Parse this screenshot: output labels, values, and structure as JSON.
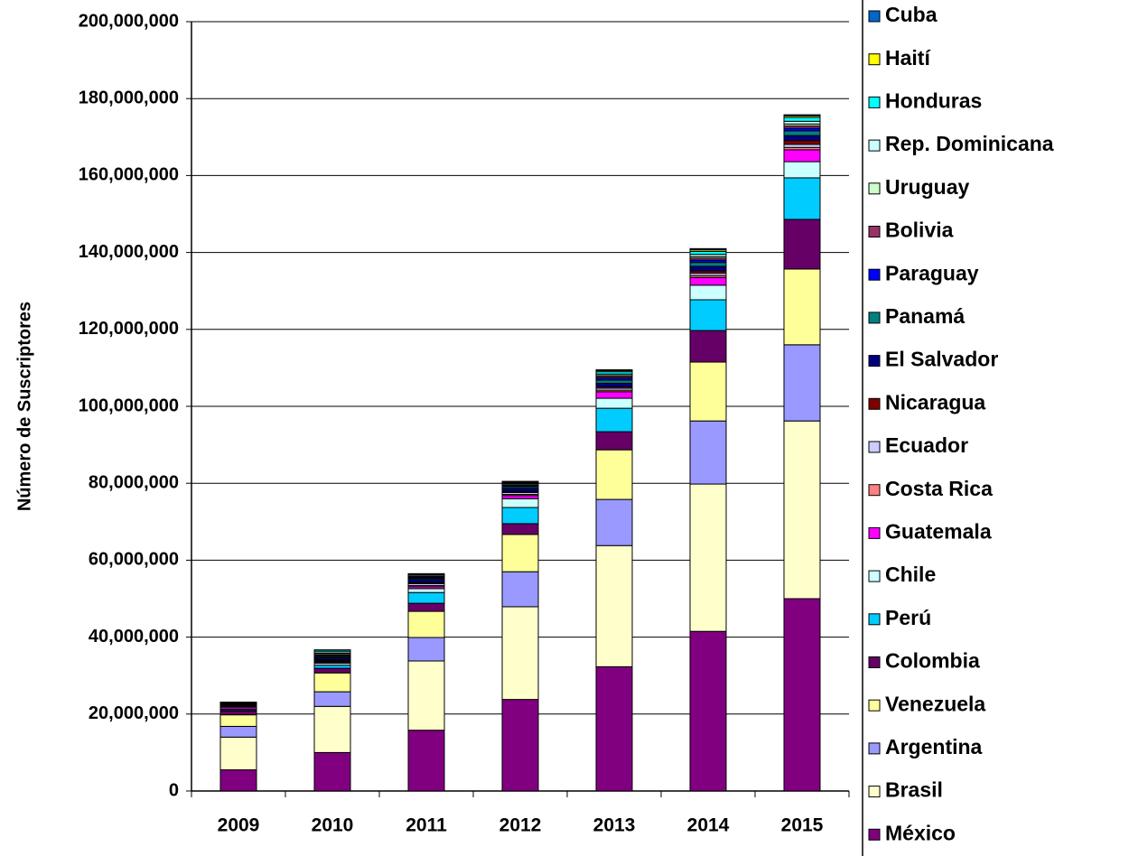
{
  "chart_data": {
    "type": "stacked_bar",
    "ylabel": "Número de Suscriptores",
    "categories": [
      "2009",
      "2010",
      "2011",
      "2012",
      "2013",
      "2014",
      "2015"
    ],
    "ylim": [
      0,
      200000000
    ],
    "yticks": [
      0,
      {
        "value": 20000000,
        "label": "20,000,000"
      },
      {
        "value": 40000000,
        "label": "40,000,000"
      },
      {
        "value": 60000000,
        "label": "60,000,000"
      },
      {
        "value": 80000000,
        "label": "80,000,000"
      },
      {
        "value": 100000000,
        "label": "100,000,000"
      },
      {
        "value": 120000000,
        "label": "120,000,000"
      },
      {
        "value": 140000000,
        "label": "140,000,000"
      },
      {
        "value": 160000000,
        "label": "160,000,000"
      },
      {
        "value": 180000000,
        "label": "180,000,000"
      },
      {
        "value": 200000000,
        "label": "200,000,000"
      }
    ],
    "grid": true,
    "legend": "right",
    "series": [
      {
        "name": "México",
        "color": "#800080",
        "values": [
          5500000,
          10000000,
          15800000,
          23800000,
          32300000,
          41500000,
          50000000
        ]
      },
      {
        "name": "Brasil",
        "color": "#ffffcc",
        "values": [
          8500000,
          12000000,
          18000000,
          24100000,
          31500000,
          38300000,
          46200000
        ]
      },
      {
        "name": "Argentina",
        "color": "#9999ff",
        "values": [
          2800000,
          3800000,
          6100000,
          9100000,
          12000000,
          16400000,
          19800000
        ]
      },
      {
        "name": "Venezuela",
        "color": "#ffff99",
        "values": [
          3000000,
          4900000,
          6800000,
          9700000,
          12900000,
          15300000,
          19700000
        ]
      },
      {
        "name": "Colombia",
        "color": "#660066",
        "values": [
          1000000,
          1200000,
          2100000,
          2800000,
          4700000,
          8200000,
          12900000
        ]
      },
      {
        "name": "Perú",
        "color": "#00ccff",
        "values": [
          300000,
          800000,
          2800000,
          4200000,
          6100000,
          8000000,
          10800000
        ]
      },
      {
        "name": "Chile",
        "color": "#ccffff",
        "values": [
          200000,
          500000,
          1000000,
          2300000,
          2600000,
          3800000,
          4200000
        ]
      },
      {
        "name": "Guatemala",
        "color": "#ff00ff",
        "values": [
          500000,
          300000,
          500000,
          800000,
          1700000,
          2000000,
          3100000
        ]
      },
      {
        "name": "Costa Rica",
        "color": "#ff8080",
        "values": [
          100000,
          200000,
          300000,
          300000,
          400000,
          500000,
          600000
        ]
      },
      {
        "name": "Ecuador",
        "color": "#ccccff",
        "values": [
          200000,
          200000,
          500000,
          500000,
          500000,
          600000,
          800000
        ]
      },
      {
        "name": "Nicaragua",
        "color": "#800000",
        "values": [
          100000,
          300000,
          300000,
          300000,
          400000,
          600000,
          1000000
        ]
      },
      {
        "name": "El Salvador",
        "color": "#000080",
        "values": [
          200000,
          500000,
          800000,
          800000,
          900000,
          1200000,
          1300000
        ]
      },
      {
        "name": "Panamá",
        "color": "#008080",
        "values": [
          100000,
          300000,
          300000,
          400000,
          800000,
          1000000,
          1200000
        ]
      },
      {
        "name": "Paraguay",
        "color": "#0000ff",
        "values": [
          100000,
          200000,
          300000,
          300000,
          500000,
          600000,
          700000
        ]
      },
      {
        "name": "Bolivia",
        "color": "#993366",
        "values": [
          100000,
          300000,
          200000,
          200000,
          400000,
          500000,
          600000
        ]
      },
      {
        "name": "Uruguay",
        "color": "#ccffcc",
        "values": [
          100000,
          300000,
          300000,
          300000,
          300000,
          400000,
          500000
        ]
      },
      {
        "name": "Rep. Dominicana",
        "color": "#ccffff",
        "values": [
          200000,
          400000,
          200000,
          200000,
          400000,
          600000,
          700000
        ]
      },
      {
        "name": "Honduras",
        "color": "#00ffff",
        "values": [
          100000,
          400000,
          100000,
          200000,
          600000,
          800000,
          1000000
        ]
      },
      {
        "name": "Haití",
        "color": "#ffff00",
        "values": [
          0,
          100000,
          100000,
          100000,
          300000,
          400000,
          400000
        ]
      },
      {
        "name": "Cuba",
        "color": "#0066cc",
        "values": [
          0,
          0,
          0,
          100000,
          200000,
          300000,
          300000
        ]
      }
    ]
  }
}
